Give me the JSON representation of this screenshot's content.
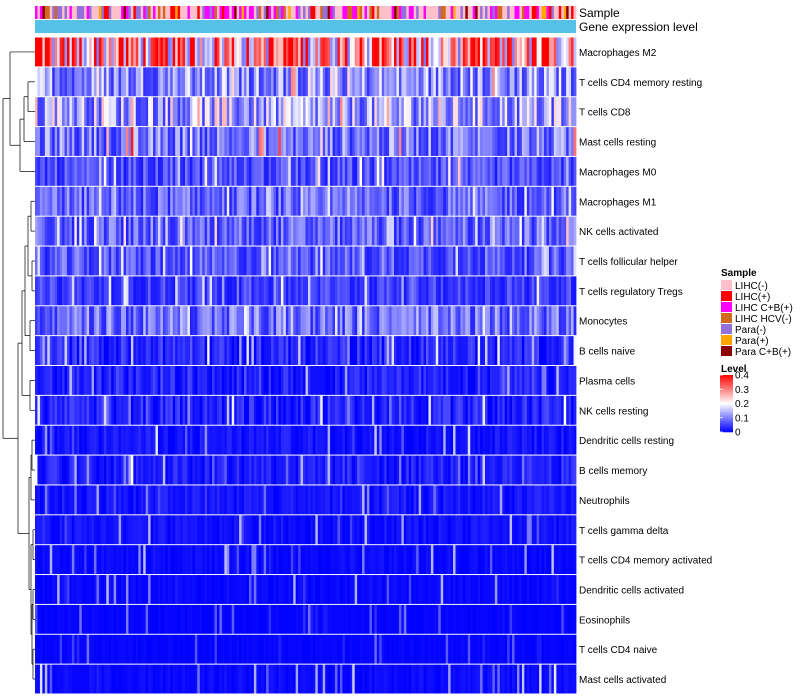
{
  "chart_data": {
    "type": "heatmap",
    "title": "",
    "annotation_tracks": [
      "Sample",
      "Gene expression level"
    ],
    "row_labels": [
      "Macrophages M2",
      "T cells CD4 memory resting",
      "T cells CD8",
      "Mast cells resting",
      "Macrophages M0",
      "Macrophages M1",
      "NK cells activated",
      "T cells follicular helper",
      "T cells regulatory  Tregs",
      "Monocytes",
      "B cells naive",
      "Plasma cells",
      "NK cells resting",
      "Dendritic cells resting",
      "B cells memory",
      "Neutrophils",
      "T cells gamma delta",
      "T cells CD4 memory activated",
      "Dendritic cells activated",
      "Eosinophils",
      "T cells CD4 naive",
      "Mast cells activated"
    ],
    "row_mean_level": [
      0.3,
      0.12,
      0.14,
      0.1,
      0.06,
      0.08,
      0.08,
      0.07,
      0.05,
      0.09,
      0.04,
      0.03,
      0.035,
      0.02,
      0.03,
      0.02,
      0.015,
      0.01,
      0.008,
      0.005,
      0.005,
      0.01
    ],
    "row_max_level": [
      0.4,
      0.3,
      0.3,
      0.4,
      0.25,
      0.2,
      0.25,
      0.2,
      0.2,
      0.2,
      0.2,
      0.15,
      0.2,
      0.2,
      0.2,
      0.15,
      0.15,
      0.15,
      0.15,
      0.1,
      0.1,
      0.2
    ],
    "legend_sample": {
      "title": "Sample",
      "entries": [
        {
          "label": "LIHC(-)",
          "color": "#FFC0CB",
          "share": 0.4
        },
        {
          "label": "LIHC(+)",
          "color": "#FF0000",
          "share": 0.05
        },
        {
          "label": "LIHC C+B(+)",
          "color": "#FF00FF",
          "share": 0.22
        },
        {
          "label": "LIHC HCV(-)",
          "color": "#D2691E",
          "share": 0.05
        },
        {
          "label": "Para(-)",
          "color": "#9370DB",
          "share": 0.18
        },
        {
          "label": "Para(+)",
          "color": "#FFA500",
          "share": 0.05
        },
        {
          "label": "Para C+B(+)",
          "color": "#8B0000",
          "share": 0.05
        }
      ]
    },
    "gene_expression_color": "#56C1E6",
    "legend_level": {
      "title": "Level",
      "ticks": [
        "0.4",
        "0.3",
        "0.2",
        "0.1",
        "0"
      ],
      "tick_values": [
        0.4,
        0.3,
        0.2,
        0.1,
        0
      ],
      "range": [
        0,
        0.4
      ],
      "colors": [
        "#0000FF",
        "#FFFFFF",
        "#FF0000"
      ]
    }
  }
}
